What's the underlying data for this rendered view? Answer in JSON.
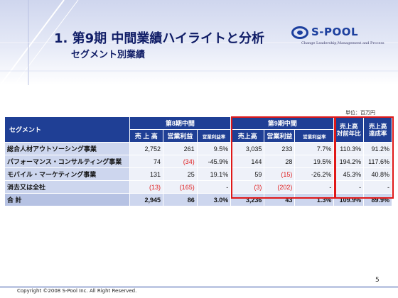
{
  "header": {
    "title": "1. 第9期 中間業績ハイライトと分析",
    "subtitle": "セグメント別業績"
  },
  "logo": {
    "name": "S-POOL",
    "tagline": "Change Leadership,Management and Process"
  },
  "unit": "単位：百万円",
  "table": {
    "col_segment": "セグメント",
    "group_prev": "第8期中間",
    "group_curr": "第9期中間",
    "col_sales_prev": "売 上 高",
    "col_op_prev": "営業利益",
    "col_opr_prev": "営業利益率",
    "col_sales_curr": "売上高",
    "col_op_curr": "営業利益",
    "col_opr_curr": "営業利益率",
    "col_yoy": "売上高\n対前年比",
    "col_achv": "売上高\n達成率",
    "rows": [
      {
        "name": "総合人材アウトソーシング事業",
        "sales8": "2,752",
        "op8": "261",
        "opr8": "9.5%",
        "sales9": "3,035",
        "op9": "233",
        "opr9": "7.7%",
        "yoy": "110.3%",
        "achv": "91.2%"
      },
      {
        "name": "パフォーマンス・コンサルティング事業",
        "sales8": "74",
        "op8": "(34)",
        "opr8": "-45.9%",
        "sales9": "144",
        "op9": "28",
        "opr9": "19.5%",
        "yoy": "194.2%",
        "achv": "117.6%"
      },
      {
        "name": "モバイル・マーケティング事業",
        "sales8": "131",
        "op8": "25",
        "opr8": "19.1%",
        "sales9": "59",
        "op9": "(15)",
        "opr9": "-26.2%",
        "yoy": "45.3%",
        "achv": "40.8%"
      },
      {
        "name": "消去又は全社",
        "sales8": "(13)",
        "op8": "(165)",
        "opr8": "-",
        "sales9": "(3)",
        "op9": "(202)",
        "opr9": "-",
        "yoy": "-",
        "achv": "-"
      }
    ],
    "total": {
      "name": "合 計",
      "sales8": "2,945",
      "op8": "86",
      "opr8": "3.0%",
      "sales9": "3,236",
      "op9": "43",
      "opr9": "1.3%",
      "yoy": "109.9%",
      "achv": "89.9%"
    }
  },
  "page_number": "5",
  "copyright": "Copyright ©2008 S-Pool Inc. All Right Reserved."
}
